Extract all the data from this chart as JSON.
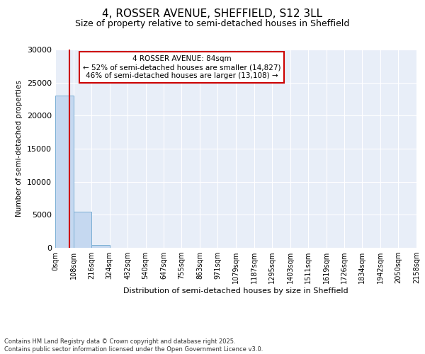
{
  "title": "4, ROSSER AVENUE, SHEFFIELD, S12 3LL",
  "subtitle": "Size of property relative to semi-detached houses in Sheffield",
  "xlabel": "Distribution of semi-detached houses by size in Sheffield",
  "ylabel": "Number of semi-detached properties",
  "annotation_title": "4 ROSSER AVENUE: 84sqm",
  "annotation_line1": "← 52% of semi-detached houses are smaller (14,827)",
  "annotation_line2": "46% of semi-detached houses are larger (13,108) →",
  "property_size": 84,
  "bin_edges": [
    0,
    108,
    216,
    324,
    432,
    540,
    647,
    755,
    863,
    971,
    1079,
    1187,
    1295,
    1403,
    1511,
    1619,
    1726,
    1834,
    1942,
    2050,
    2158
  ],
  "bin_counts": [
    23000,
    5500,
    400,
    50,
    10,
    5,
    3,
    2,
    2,
    1,
    1,
    1,
    1,
    0,
    0,
    0,
    0,
    0,
    0,
    0
  ],
  "bar_color": "#c5d8f0",
  "bar_edge_color": "#7bafd4",
  "vline_color": "#cc0000",
  "annotation_box_color": "#cc0000",
  "background_color": "#e8eef8",
  "ylim": [
    0,
    30000
  ],
  "yticks": [
    0,
    5000,
    10000,
    15000,
    20000,
    25000,
    30000
  ],
  "footer_line1": "Contains HM Land Registry data © Crown copyright and database right 2025.",
  "footer_line2": "Contains public sector information licensed under the Open Government Licence v3.0."
}
